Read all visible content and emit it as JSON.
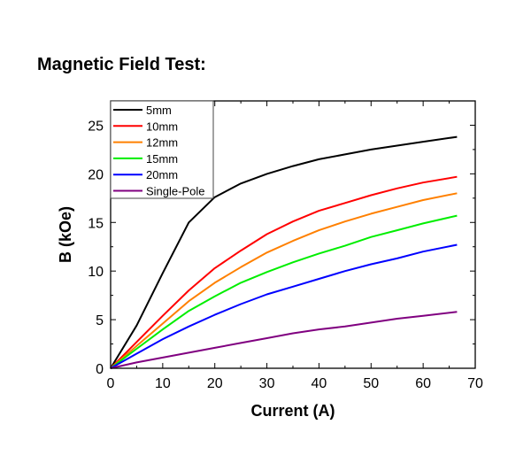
{
  "page_title": "Magnetic Field Test:",
  "chart_data": {
    "type": "line",
    "title": "",
    "xlabel": "Current (A)",
    "ylabel": "B (kOe)",
    "xlim": [
      0,
      70
    ],
    "ylim": [
      0,
      27.5
    ],
    "xticks": [
      0,
      10,
      20,
      30,
      40,
      50,
      60,
      70
    ],
    "yticks": [
      0,
      5,
      10,
      15,
      20,
      25
    ],
    "grid": false,
    "legend_position": "top-left",
    "x": [
      0,
      5,
      10,
      15,
      20,
      25,
      30,
      35,
      40,
      45,
      50,
      55,
      60,
      66.5
    ],
    "series": [
      {
        "name": "5mm",
        "color": "#000000",
        "values": [
          0,
          4.4,
          9.8,
          15.0,
          17.6,
          19.0,
          20.0,
          20.8,
          21.5,
          22.0,
          22.5,
          22.9,
          23.3,
          23.8
        ]
      },
      {
        "name": "10mm",
        "color": "#ff0000",
        "values": [
          0,
          2.7,
          5.4,
          8.0,
          10.3,
          12.1,
          13.8,
          15.1,
          16.2,
          17.0,
          17.8,
          18.5,
          19.1,
          19.7
        ]
      },
      {
        "name": "12mm",
        "color": "#ff8000",
        "values": [
          0,
          2.3,
          4.6,
          6.9,
          8.8,
          10.4,
          11.9,
          13.1,
          14.2,
          15.1,
          15.9,
          16.6,
          17.3,
          18.0
        ]
      },
      {
        "name": "15mm",
        "color": "#00ee00",
        "values": [
          0,
          2.0,
          4.0,
          5.9,
          7.4,
          8.8,
          9.9,
          10.9,
          11.8,
          12.6,
          13.5,
          14.2,
          14.9,
          15.7
        ]
      },
      {
        "name": "20mm",
        "color": "#0000ff",
        "values": [
          0,
          1.5,
          3.0,
          4.3,
          5.5,
          6.6,
          7.6,
          8.4,
          9.2,
          10.0,
          10.7,
          11.3,
          12.0,
          12.7
        ]
      },
      {
        "name": "Single-Pole",
        "color": "#800080",
        "values": [
          0,
          0.6,
          1.1,
          1.6,
          2.1,
          2.6,
          3.1,
          3.6,
          4.0,
          4.3,
          4.7,
          5.1,
          5.4,
          5.8
        ]
      }
    ]
  }
}
